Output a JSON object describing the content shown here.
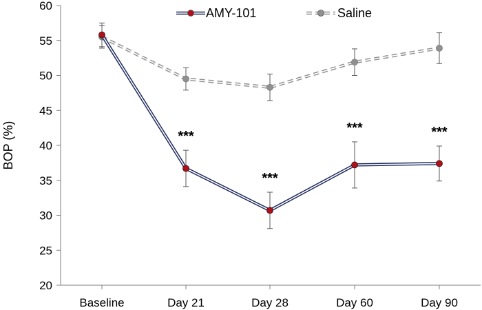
{
  "chart_data": {
    "type": "line",
    "title": "",
    "xlabel": "",
    "ylabel": "BOP (%)",
    "categories": [
      "Baseline",
      "Day 21",
      "Day 28",
      "Day 60",
      "Day 90"
    ],
    "ylim": [
      20,
      60
    ],
    "yticks": [
      20,
      25,
      30,
      35,
      40,
      45,
      50,
      55,
      60
    ],
    "legend_position": "top",
    "series": [
      {
        "name": "AMY-101",
        "values": [
          55.8,
          36.7,
          30.7,
          37.2,
          37.4
        ],
        "error": [
          1.7,
          2.6,
          2.6,
          3.3,
          2.5
        ],
        "line_color": "#1f2a5c",
        "marker_color": "#b0101a",
        "style": "double-solid"
      },
      {
        "name": "Saline",
        "values": [
          55.5,
          49.5,
          48.3,
          51.9,
          53.9
        ],
        "error": [
          1.6,
          1.6,
          1.9,
          1.9,
          2.2
        ],
        "line_color": "#909090",
        "marker_color": "#909090",
        "style": "double-dashed"
      }
    ],
    "annotations": [
      {
        "category": "Day 21",
        "text": "***"
      },
      {
        "category": "Day 28",
        "text": "***"
      },
      {
        "category": "Day 60",
        "text": "***"
      },
      {
        "category": "Day 90",
        "text": "***"
      }
    ]
  }
}
